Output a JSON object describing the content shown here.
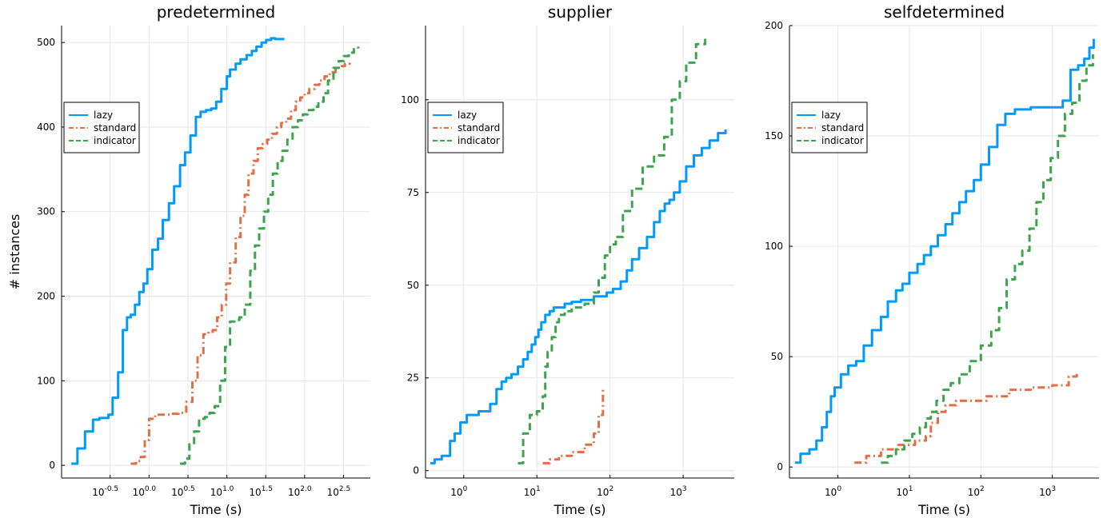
{
  "figure": {
    "ylabel": "# instances",
    "xlabel": "Time (s)"
  },
  "legend": {
    "position": "upper-left",
    "entries": [
      {
        "label": "lazy",
        "color": "#009AF9",
        "style": "solid"
      },
      {
        "label": "standard",
        "color": "#E26F46",
        "style": "dashdot"
      },
      {
        "label": "indicator",
        "color": "#3DA44D",
        "style": "dashed"
      }
    ]
  },
  "chart_data": [
    {
      "type": "line",
      "title": "predetermined",
      "xlabel": "Time (s)",
      "ylabel": "# instances",
      "xscale": "log10",
      "xlim": [
        0.075,
        700
      ],
      "ylim": [
        -15,
        520
      ],
      "xticks": [
        {
          "base": "10",
          "exp": "-0.5",
          "value": 0.316
        },
        {
          "base": "10",
          "exp": "0.0",
          "value": 1.0
        },
        {
          "base": "10",
          "exp": "0.5",
          "value": 3.162
        },
        {
          "base": "10",
          "exp": "1.0",
          "value": 10.0
        },
        {
          "base": "10",
          "exp": "1.5",
          "value": 31.62
        },
        {
          "base": "10",
          "exp": "2.0",
          "value": 100.0
        },
        {
          "base": "10",
          "exp": "2.5",
          "value": 316.2
        }
      ],
      "yticks": [
        0,
        100,
        200,
        300,
        400,
        500
      ],
      "grid": true,
      "series": [
        {
          "name": "lazy",
          "x": [
            0.1,
            0.12,
            0.15,
            0.19,
            0.23,
            0.3,
            0.34,
            0.4,
            0.46,
            0.52,
            0.58,
            0.66,
            0.75,
            0.85,
            0.95,
            1.1,
            1.3,
            1.5,
            1.8,
            2.1,
            2.5,
            2.9,
            3.4,
            4,
            4.6,
            5.4,
            6.3,
            7.3,
            8.5,
            10,
            11,
            13,
            15,
            18,
            21,
            24,
            28,
            32,
            37,
            42,
            48,
            55
          ],
          "y": [
            2,
            20,
            40,
            54,
            56,
            60,
            80,
            110,
            160,
            175,
            178,
            190,
            205,
            215,
            232,
            255,
            268,
            290,
            310,
            330,
            355,
            370,
            390,
            412,
            418,
            420,
            422,
            430,
            445,
            460,
            468,
            475,
            480,
            485,
            490,
            495,
            500,
            503,
            505,
            504,
            504,
            504
          ]
        },
        {
          "name": "standard",
          "x": [
            0.58,
            0.68,
            0.78,
            0.88,
            1.0,
            1.2,
            1.5,
            1.9,
            2.4,
            3.0,
            3.6,
            4.2,
            5.0,
            5.8,
            6.6,
            7.5,
            8.6,
            9.8,
            11,
            13,
            15,
            17,
            19,
            22,
            25,
            29,
            33,
            38,
            44,
            50,
            58,
            67,
            77,
            88,
            100,
            115,
            135,
            155,
            180,
            210,
            250,
            290,
            330,
            380
          ],
          "y": [
            2,
            5,
            10,
            30,
            55,
            60,
            60,
            61,
            62,
            75,
            100,
            130,
            155,
            158,
            160,
            175,
            190,
            215,
            240,
            270,
            295,
            320,
            345,
            360,
            375,
            380,
            385,
            392,
            400,
            405,
            410,
            420,
            430,
            435,
            440,
            445,
            450,
            455,
            460,
            465,
            470,
            472,
            475,
            478
          ]
        },
        {
          "name": "indicator",
          "x": [
            2.5,
            2.9,
            3.3,
            3.8,
            4.4,
            5.2,
            6.0,
            7.0,
            8.2,
            9.5,
            11,
            12.5,
            14.5,
            17,
            20,
            23,
            26,
            30,
            34,
            39,
            45,
            52,
            60,
            70,
            82,
            95,
            110,
            130,
            150,
            175,
            200,
            235,
            275,
            320,
            370,
            430,
            490
          ],
          "y": [
            2,
            8,
            25,
            40,
            55,
            57,
            62,
            70,
            100,
            140,
            170,
            172,
            175,
            190,
            230,
            260,
            280,
            300,
            320,
            345,
            360,
            372,
            385,
            400,
            408,
            415,
            420,
            424,
            430,
            440,
            455,
            470,
            478,
            484,
            488,
            492,
            495
          ]
        }
      ]
    },
    {
      "type": "line",
      "title": "supplier",
      "xlabel": "Time (s)",
      "ylabel": "",
      "xscale": "log10",
      "xlim": [
        0.3,
        5000
      ],
      "ylim": [
        -2,
        120
      ],
      "xticks": [
        {
          "base": "10",
          "exp": "0",
          "value": 1
        },
        {
          "base": "10",
          "exp": "1",
          "value": 10
        },
        {
          "base": "10",
          "exp": "2",
          "value": 100
        },
        {
          "base": "10",
          "exp": "3",
          "value": 1000
        }
      ],
      "yticks": [
        0,
        25,
        50,
        75,
        100
      ],
      "grid": true,
      "series": [
        {
          "name": "lazy",
          "x": [
            0.35,
            0.4,
            0.5,
            0.65,
            0.75,
            0.9,
            1.1,
            1.6,
            2.3,
            2.8,
            3.3,
            3.8,
            4.5,
            5.5,
            6.5,
            7.5,
            8.5,
            9.5,
            10.5,
            11.5,
            13,
            15,
            17,
            20,
            24,
            30,
            40,
            60,
            90,
            110,
            140,
            170,
            200,
            250,
            320,
            400,
            480,
            560,
            650,
            750,
            900,
            1100,
            1400,
            1800,
            2300,
            3000,
            3800
          ],
          "y": [
            2,
            3,
            4,
            8,
            10,
            13,
            15,
            16,
            18,
            22,
            24,
            25,
            26,
            28,
            30,
            32,
            34,
            36,
            38,
            40,
            42,
            43,
            44,
            44,
            45,
            45.5,
            46,
            47,
            48,
            49,
            51,
            54,
            57,
            60,
            63,
            67,
            70,
            72,
            73,
            75,
            78,
            82,
            85,
            87,
            89,
            91,
            92
          ]
        },
        {
          "name": "standard",
          "x": [
            12,
            15,
            20,
            30,
            45,
            60,
            70,
            80
          ],
          "y": [
            2,
            3,
            4,
            5,
            7,
            10,
            15,
            22
          ]
        },
        {
          "name": "indicator",
          "x": [
            5.5,
            6.5,
            8,
            10,
            12,
            13,
            14,
            16,
            18,
            20,
            24,
            30,
            45,
            60,
            70,
            85,
            100,
            120,
            150,
            200,
            280,
            400,
            550,
            700,
            900,
            1100,
            1500,
            2000
          ],
          "y": [
            2,
            10,
            15,
            16,
            20,
            28,
            32,
            36,
            40,
            42,
            43,
            44,
            45,
            48,
            52,
            58,
            61,
            63,
            70,
            76,
            82,
            85,
            90,
            100,
            105,
            110,
            115,
            117
          ]
        }
      ]
    },
    {
      "type": "line",
      "title": "selfdetermined",
      "xlabel": "Time (s)",
      "ylabel": "",
      "xscale": "log10",
      "xlim": [
        0.21,
        4500
      ],
      "ylim": [
        -5,
        200
      ],
      "xticks": [
        {
          "base": "10",
          "exp": "0",
          "value": 1
        },
        {
          "base": "10",
          "exp": "1",
          "value": 10
        },
        {
          "base": "10",
          "exp": "2",
          "value": 100
        },
        {
          "base": "10",
          "exp": "3",
          "value": 1000
        }
      ],
      "yticks": [
        0,
        50,
        100,
        150,
        200
      ],
      "grid": true,
      "series": [
        {
          "name": "lazy",
          "x": [
            0.25,
            0.3,
            0.4,
            0.5,
            0.6,
            0.7,
            0.8,
            0.9,
            1.1,
            1.4,
            1.8,
            2.3,
            3,
            4,
            5,
            6.5,
            8,
            10,
            13,
            16,
            20,
            25,
            32,
            40,
            50,
            62,
            80,
            100,
            130,
            170,
            220,
            300,
            500,
            1000,
            1400,
            1800,
            2300,
            2800,
            3300,
            3800
          ],
          "y": [
            2,
            6,
            8,
            12,
            18,
            25,
            32,
            36,
            42,
            46,
            48,
            55,
            62,
            68,
            75,
            80,
            83,
            88,
            92,
            96,
            100,
            105,
            110,
            115,
            120,
            125,
            130,
            137,
            145,
            155,
            160,
            162,
            163,
            163,
            166,
            180,
            182,
            185,
            190,
            194
          ]
        },
        {
          "name": "standard",
          "x": [
            1.7,
            2.5,
            4,
            7,
            12,
            17,
            20,
            25,
            32,
            45,
            70,
            120,
            250,
            500,
            1000,
            1400,
            1700,
            2200
          ],
          "y": [
            2,
            5,
            8,
            10,
            12,
            14,
            20,
            25,
            28,
            30,
            30,
            32,
            35,
            36,
            37,
            37,
            41,
            43
          ]
        },
        {
          "name": "indicator",
          "x": [
            4,
            5,
            6.5,
            8.5,
            11,
            14,
            17,
            20,
            24,
            30,
            38,
            50,
            70,
            100,
            140,
            180,
            230,
            300,
            380,
            480,
            600,
            750,
            950,
            1200,
            1500,
            1900,
            2400,
            3000,
            3700
          ],
          "y": [
            2,
            5,
            8,
            12,
            15,
            18,
            22,
            25,
            30,
            35,
            38,
            42,
            48,
            55,
            62,
            72,
            85,
            92,
            98,
            108,
            120,
            130,
            140,
            150,
            160,
            165,
            175,
            182,
            187
          ]
        }
      ]
    }
  ]
}
